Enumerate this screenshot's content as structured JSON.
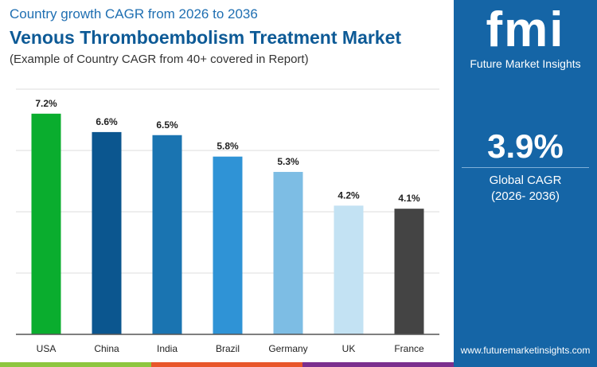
{
  "header": {
    "subtitle": "Country growth CAGR from 2026 to 2036",
    "title": "Venous Thromboembolism Treatment Market",
    "note": "(Example of Country CAGR from 40+ covered in Report)"
  },
  "sidebar": {
    "logo_text": "fmi",
    "logo_caption": "Future Market Insights",
    "value": "3.9%",
    "label": "Global CAGR",
    "period": "(2026- 2036)",
    "url": "www.futuremarketinsights.com"
  },
  "colors": {
    "brand": "#1565a6",
    "stripe": [
      "#8dc63f",
      "#e8562a",
      "#7b2f8e"
    ]
  },
  "chart_data": {
    "type": "bar",
    "categories": [
      "USA",
      "China",
      "India",
      "Brazil",
      "Germany",
      "UK",
      "France"
    ],
    "values": [
      7.2,
      6.6,
      6.5,
      5.8,
      5.3,
      4.2,
      4.1
    ],
    "labels": [
      "7.2%",
      "6.6%",
      "6.5%",
      "5.8%",
      "5.3%",
      "4.2%",
      "4.1%"
    ],
    "colors": [
      "#0aad2e",
      "#0b568f",
      "#1a74b1",
      "#2f93d6",
      "#7dbde4",
      "#c3e2f3",
      "#444444"
    ],
    "ylim": [
      0,
      8
    ],
    "grid": true,
    "ytick_labels_shown": false
  }
}
